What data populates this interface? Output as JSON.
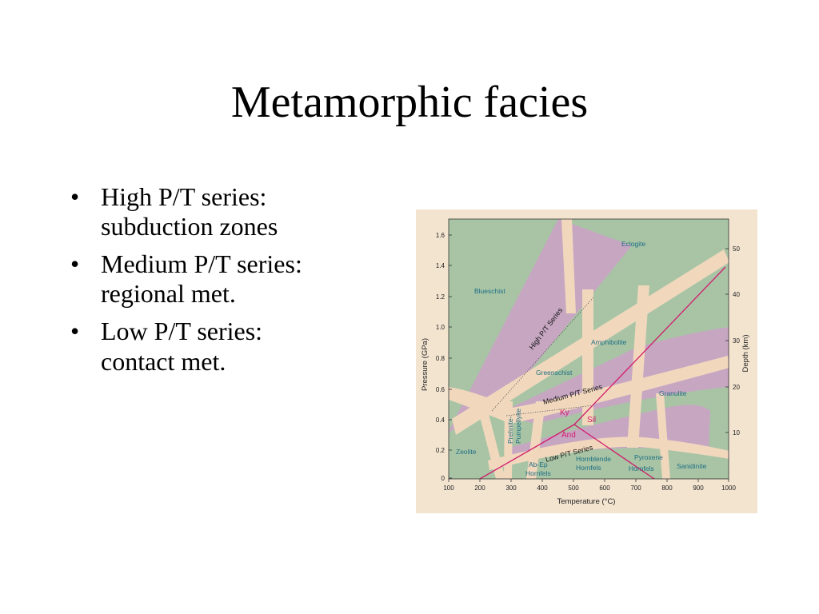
{
  "slide": {
    "title": "Metamorphic facies",
    "bullets": [
      {
        "line1": "High P/T series:",
        "line2": "subduction zones"
      },
      {
        "line1": "Medium P/T series:",
        "line2": "regional met."
      },
      {
        "line1": "Low P/T series:",
        "line2": "contact met."
      }
    ],
    "bullet_glyph": "•"
  },
  "diagram": {
    "x_axis": {
      "label": "Temperature (°C)",
      "ticks": [
        "100",
        "200",
        "300",
        "400",
        "500",
        "600",
        "700",
        "800",
        "900",
        "1000"
      ]
    },
    "y_axis_left": {
      "label": "Pressure (GPa)",
      "ticks": [
        "0",
        "0.2",
        "0.4",
        "0.6",
        "0.8",
        "1.0",
        "1.2",
        "1.4",
        "1.6"
      ]
    },
    "y_axis_right": {
      "label": "Depth (km)",
      "ticks": [
        "10",
        "20",
        "30",
        "40",
        "50"
      ]
    },
    "facies": {
      "blueschist": "Blueschist",
      "eclogite": "Eclogite",
      "amphibolite": "Amphibolite",
      "greenschist": "Greenschist",
      "granulite": "Granulite",
      "zeolite": "Zeolite",
      "prehnite_1": "Prehnite-",
      "prehnite_2": "Pumpellyite",
      "abep_1": "Ab-Ep",
      "abep_2": "Hornfels",
      "hornblende_1": "Hornblende",
      "hornblende_2": "Hornfels",
      "pyroxene_1": "Pyroxene",
      "pyroxene_2": "Hornfels",
      "sanidinite": "Sanidinite"
    },
    "series_labels": {
      "high": "High P/T Series",
      "medium": "Medium P/T Series",
      "low": "Low P/T Series"
    },
    "minerals": {
      "ky": "Ky",
      "sil": "Sil",
      "and": "And"
    },
    "colors": {
      "background": "#f3e4d0",
      "plot": "#a8c4a5",
      "band": "#c7a6c2",
      "path": "#f1d8bd",
      "aluminosilicate_lines": "#d11b6c",
      "facies_text": "#1f6e84"
    }
  }
}
